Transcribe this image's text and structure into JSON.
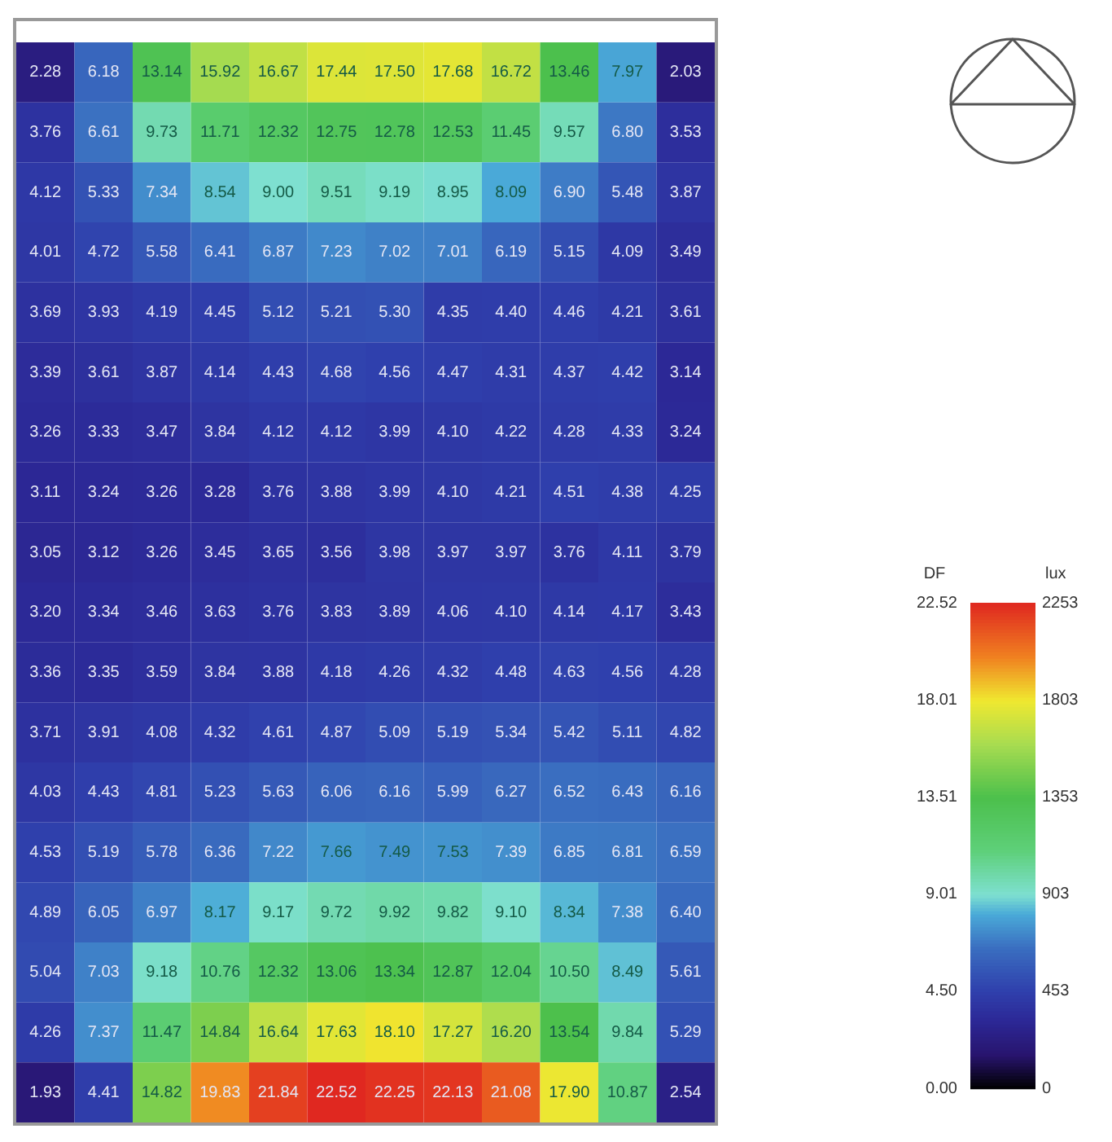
{
  "chart_data": {
    "type": "heatmap",
    "categories": [
      null,
      null,
      null,
      null,
      null,
      null,
      null,
      null,
      null,
      null,
      null,
      null
    ],
    "y_categories": [
      null,
      null,
      null,
      null,
      null,
      null,
      null,
      null,
      null,
      null,
      null,
      null,
      null,
      null,
      null,
      null,
      null,
      null
    ],
    "cells": [
      [
        2.28,
        6.18,
        13.14,
        15.92,
        16.67,
        17.44,
        17.5,
        17.68,
        16.72,
        13.46,
        7.97,
        2.03
      ],
      [
        3.76,
        6.61,
        9.73,
        11.71,
        12.32,
        12.75,
        12.78,
        12.53,
        11.45,
        9.57,
        6.8,
        3.53
      ],
      [
        4.12,
        5.33,
        7.34,
        8.54,
        9.0,
        9.51,
        9.19,
        8.95,
        8.09,
        6.9,
        5.48,
        3.87
      ],
      [
        4.01,
        4.72,
        5.58,
        6.41,
        6.87,
        7.23,
        7.02,
        7.01,
        6.19,
        5.15,
        4.09,
        3.49
      ],
      [
        3.69,
        3.93,
        4.19,
        4.45,
        5.12,
        5.21,
        5.3,
        4.35,
        4.4,
        4.46,
        4.21,
        3.61
      ],
      [
        3.39,
        3.61,
        3.87,
        4.14,
        4.43,
        4.68,
        4.56,
        4.47,
        4.31,
        4.37,
        4.42,
        3.14
      ],
      [
        3.26,
        3.33,
        3.47,
        3.84,
        4.12,
        4.12,
        3.99,
        4.1,
        4.22,
        4.28,
        4.33,
        3.24
      ],
      [
        3.11,
        3.24,
        3.26,
        3.28,
        3.76,
        3.88,
        3.99,
        4.1,
        4.21,
        4.51,
        4.38,
        4.25
      ],
      [
        3.05,
        3.12,
        3.26,
        3.45,
        3.65,
        3.56,
        3.98,
        3.97,
        3.97,
        3.76,
        4.11,
        3.79
      ],
      [
        3.2,
        3.34,
        3.46,
        3.63,
        3.76,
        3.83,
        3.89,
        4.06,
        4.1,
        4.14,
        4.17,
        3.43
      ],
      [
        3.36,
        3.35,
        3.59,
        3.84,
        3.88,
        4.18,
        4.26,
        4.32,
        4.48,
        4.63,
        4.56,
        4.28
      ],
      [
        3.71,
        3.91,
        4.08,
        4.32,
        4.61,
        4.87,
        5.09,
        5.19,
        5.34,
        5.42,
        5.11,
        4.82
      ],
      [
        4.03,
        4.43,
        4.81,
        5.23,
        5.63,
        6.06,
        6.16,
        5.99,
        6.27,
        6.52,
        6.43,
        6.16
      ],
      [
        4.53,
        5.19,
        5.78,
        6.36,
        7.22,
        7.66,
        7.49,
        7.53,
        7.39,
        6.85,
        6.81,
        6.59
      ],
      [
        4.89,
        6.05,
        6.97,
        8.17,
        9.17,
        9.72,
        9.92,
        9.82,
        9.1,
        8.34,
        7.38,
        6.4
      ],
      [
        5.04,
        7.03,
        9.18,
        10.76,
        12.32,
        13.06,
        13.34,
        12.87,
        12.04,
        10.5,
        8.49,
        5.61
      ],
      [
        4.26,
        7.37,
        11.47,
        14.84,
        16.64,
        17.63,
        18.1,
        17.27,
        16.2,
        13.54,
        9.84,
        5.29
      ],
      [
        1.93,
        4.41,
        14.82,
        19.83,
        21.84,
        22.52,
        22.25,
        22.13,
        21.08,
        17.9,
        10.87,
        2.54
      ]
    ],
    "cell_labels": [
      [
        "2.28",
        "6.18",
        "13.14",
        "15.92",
        "16.67",
        "17.44",
        "17.50",
        "17.68",
        "16.72",
        "13.46",
        "7.97",
        "2.03"
      ],
      [
        "3.76",
        "6.61",
        "9.73",
        "11.71",
        "12.32",
        "12.75",
        "12.78",
        "12.53",
        "11.45",
        "9.57",
        "6.80",
        "3.53"
      ],
      [
        "4.12",
        "5.33",
        "7.34",
        "8.54",
        "9.00",
        "9.51",
        "9.19",
        "8.95",
        "8.09",
        "6.90",
        "5.48",
        "3.87"
      ],
      [
        "4.01",
        "4.72",
        "5.58",
        "6.41",
        "6.87",
        "7.23",
        "7.02",
        "7.01",
        "6.19",
        "5.15",
        "4.09",
        "3.49"
      ],
      [
        "3.69",
        "3.93",
        "4.19",
        "4.45",
        "5.12",
        "5.21",
        "5.30",
        "4.35",
        "4.40",
        "4.46",
        "4.21",
        "3.61"
      ],
      [
        "3.39",
        "3.61",
        "3.87",
        "4.14",
        "4.43",
        "4.68",
        "4.56",
        "4.47",
        "4.31",
        "4.37",
        "4.42",
        "3.14"
      ],
      [
        "3.26",
        "3.33",
        "3.47",
        "3.84",
        "4.12",
        "4.12",
        "3.99",
        "4.10",
        "4.22",
        "4.28",
        "4.33",
        "3.24"
      ],
      [
        "3.11",
        "3.24",
        "3.26",
        "3.28",
        "3.76",
        "3.88",
        "3.99",
        "4.10",
        "4.21",
        "4.51",
        "4.38",
        "4.25"
      ],
      [
        "3.05",
        "3.12",
        "3.26",
        "3.45",
        "3.65",
        "3.56",
        "3.98",
        "3.97",
        "3.97",
        "3.76",
        "4.11",
        "3.79"
      ],
      [
        "3.20",
        "3.34",
        "3.46",
        "3.63",
        "3.76",
        "3.83",
        "3.89",
        "4.06",
        "4.10",
        "4.14",
        "4.17",
        "3.43"
      ],
      [
        "3.36",
        "3.35",
        "3.59",
        "3.84",
        "3.88",
        "4.18",
        "4.26",
        "4.32",
        "4.48",
        "4.63",
        "4.56",
        "4.28"
      ],
      [
        "3.71",
        "3.91",
        "4.08",
        "4.32",
        "4.61",
        "4.87",
        "5.09",
        "5.19",
        "5.34",
        "5.42",
        "5.11",
        "4.82"
      ],
      [
        "4.03",
        "4.43",
        "4.81",
        "5.23",
        "5.63",
        "6.06",
        "6.16",
        "5.99",
        "6.27",
        "6.52",
        "6.43",
        "6.16"
      ],
      [
        "4.53",
        "5.19",
        "5.78",
        "6.36",
        "7.22",
        "7.66",
        "7.49",
        "7.53",
        "7.39",
        "6.85",
        "6.81",
        "6.59"
      ],
      [
        "4.89",
        "6.05",
        "6.97",
        "8.17",
        "9.17",
        "9.72",
        "9.92",
        "9.82",
        "9.10",
        "8.34",
        "7.38",
        "6.40"
      ],
      [
        "5.04",
        "7.03",
        "9.18",
        "10.76",
        "12.32",
        "13.06",
        "13.34",
        "12.87",
        "12.04",
        "10.50",
        "8.49",
        "5.61"
      ],
      [
        "4.26",
        "7.37",
        "11.47",
        "14.84",
        "16.64",
        "17.63",
        "18.10",
        "17.27",
        "16.20",
        "13.54",
        "9.84",
        "5.29"
      ],
      [
        "1.93",
        "4.41",
        "14.82",
        "19.83",
        "21.84",
        "22.52",
        "22.25",
        "22.13",
        "21.08",
        "17.90",
        "10.87",
        "2.54"
      ]
    ],
    "clim": [
      0,
      22.52
    ],
    "cticks": [
      {
        "value": 0,
        "label": "0.00"
      },
      {
        "value": 4.5,
        "label": "4.50"
      },
      9.01,
      13.51,
      18.01,
      22.52
    ],
    "clabel": "DF",
    "annotations": [
      "lux",
      "0",
      "453",
      "903",
      "1353",
      "1803",
      "2253"
    ]
  }
}
